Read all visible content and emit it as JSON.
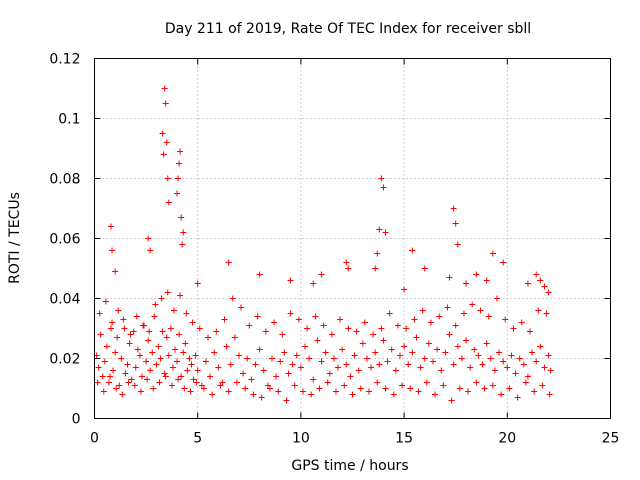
{
  "chart_data": {
    "type": "scatter",
    "title": "Day 211 of 2019, Rate Of TEC Index for receiver sbll",
    "xlabel": "GPS time / hours",
    "ylabel": "ROTI / TECUs",
    "xlim": [
      0,
      25
    ],
    "ylim": [
      0,
      0.12
    ],
    "xticks": [
      0,
      5,
      10,
      15,
      20,
      25
    ],
    "xtick_labels": [
      "0",
      "5",
      "10",
      "15",
      "20",
      "25"
    ],
    "yticks": [
      0,
      0.02,
      0.04,
      0.06,
      0.08,
      0.1,
      0.12
    ],
    "ytick_labels": [
      "0",
      "0.02",
      "0.04",
      "0.06",
      "0.08",
      "0.1",
      "0.12"
    ],
    "grid": true,
    "marker": "+",
    "series": [
      {
        "name": "ROTI",
        "color": "#ff0000",
        "x": [
          0.1,
          0.2,
          0.3,
          0.4,
          0.5,
          0.6,
          0.7,
          0.8,
          0.9,
          1.0,
          1.1,
          1.2,
          1.3,
          1.4,
          1.5,
          1.6,
          1.7,
          1.8,
          1.9,
          2.0,
          2.1,
          2.2,
          2.3,
          2.4,
          2.5,
          2.6,
          2.7,
          2.8,
          2.9,
          3.0,
          3.1,
          3.2,
          3.3,
          3.4,
          3.5,
          3.6,
          3.7,
          3.8,
          3.9,
          4.0,
          4.1,
          4.2,
          4.3,
          4.4,
          4.5,
          4.6,
          4.7,
          4.8,
          4.9,
          5.0,
          5.2,
          5.4,
          5.6,
          5.8,
          6.0,
          6.2,
          6.4,
          6.6,
          6.8,
          7.0,
          7.2,
          7.4,
          7.6,
          7.8,
          8.0,
          8.2,
          8.4,
          8.6,
          8.8,
          9.0,
          9.2,
          9.4,
          9.6,
          9.8,
          10.0,
          10.2,
          10.4,
          10.6,
          10.8,
          11.0,
          11.2,
          11.4,
          11.6,
          11.8,
          12.0,
          12.2,
          12.4,
          12.6,
          12.8,
          13.0,
          13.2,
          13.4,
          13.6,
          13.8,
          14.0,
          14.2,
          14.4,
          14.6,
          14.8,
          15.0,
          15.2,
          15.4,
          15.6,
          15.8,
          16.0,
          16.2,
          16.4,
          16.6,
          16.8,
          17.0,
          17.2,
          17.4,
          17.6,
          17.8,
          18.0,
          18.2,
          18.4,
          18.6,
          18.8,
          19.0,
          19.2,
          19.4,
          19.6,
          19.8,
          20.0,
          20.2,
          20.4,
          20.6,
          20.8,
          21.0,
          21.2,
          21.4,
          21.6,
          21.8,
          22.0,
          22.1,
          0.15,
          0.45,
          0.75,
          1.05,
          1.35,
          1.65,
          1.95,
          2.25,
          2.55,
          2.85,
          3.15,
          3.45,
          3.75,
          4.05,
          4.35,
          4.65,
          4.95,
          5.3,
          5.7,
          6.1,
          6.5,
          6.9,
          7.3,
          7.7,
          8.1,
          8.5,
          8.9,
          9.3,
          9.7,
          10.1,
          10.5,
          10.9,
          11.3,
          11.7,
          12.1,
          12.5,
          12.9,
          13.3,
          13.7,
          14.1,
          14.5,
          14.9,
          15.3,
          15.7,
          16.1,
          16.5,
          16.9,
          17.3,
          17.7,
          18.1,
          18.5,
          18.9,
          19.3,
          19.7,
          20.1,
          20.5,
          20.9,
          21.3,
          21.7,
          22.05,
          0.25,
          0.55,
          0.85,
          1.15,
          1.45,
          1.75,
          2.05,
          2.35,
          2.65,
          2.95,
          3.25,
          3.55,
          3.85,
          4.15,
          4.45,
          4.75,
          5.1,
          5.5,
          5.9,
          6.3,
          6.7,
          7.1,
          7.5,
          7.9,
          8.3,
          8.7,
          9.1,
          9.5,
          9.9,
          10.3,
          10.7,
          11.1,
          11.5,
          11.9,
          12.3,
          12.7,
          13.1,
          13.5,
          13.9,
          14.3,
          14.7,
          15.1,
          15.5,
          15.9,
          16.3,
          16.7,
          17.1,
          17.5,
          17.9,
          18.3,
          18.7,
          19.1,
          19.5,
          19.9,
          20.3,
          20.7,
          21.1,
          21.5,
          21.9,
          0.8,
          0.85,
          1.0,
          2.6,
          2.7,
          3.3,
          3.35,
          3.4,
          3.45,
          3.5,
          3.55,
          3.6,
          4.0,
          4.05,
          4.1,
          4.15,
          4.2,
          4.25,
          4.3,
          5.0,
          6.5,
          8.0,
          9.5,
          10.6,
          11.0,
          12.2,
          12.3,
          13.6,
          13.7,
          13.8,
          13.9,
          14.0,
          14.1,
          15.0,
          15.4,
          16.0,
          17.2,
          17.4,
          17.5,
          17.6,
          18.0,
          18.5,
          19.0,
          19.3,
          19.8,
          21.0,
          21.4,
          21.6,
          21.8,
          22.0
        ],
        "y": [
          0.021,
          0.017,
          0.028,
          0.014,
          0.019,
          0.024,
          0.012,
          0.03,
          0.016,
          0.022,
          0.027,
          0.011,
          0.02,
          0.033,
          0.015,
          0.018,
          0.025,
          0.013,
          0.029,
          0.017,
          0.023,
          0.021,
          0.014,
          0.031,
          0.019,
          0.026,
          0.016,
          0.022,
          0.034,
          0.018,
          0.024,
          0.02,
          0.029,
          0.015,
          0.027,
          0.021,
          0.03,
          0.017,
          0.023,
          0.019,
          0.028,
          0.014,
          0.022,
          0.025,
          0.016,
          0.02,
          0.018,
          0.013,
          0.021,
          0.016,
          0.011,
          0.019,
          0.014,
          0.022,
          0.017,
          0.012,
          0.024,
          0.018,
          0.027,
          0.021,
          0.015,
          0.02,
          0.013,
          0.018,
          0.023,
          0.016,
          0.011,
          0.02,
          0.014,
          0.019,
          0.022,
          0.015,
          0.018,
          0.021,
          0.017,
          0.024,
          0.02,
          0.013,
          0.026,
          0.019,
          0.022,
          0.015,
          0.02,
          0.017,
          0.023,
          0.018,
          0.014,
          0.021,
          0.016,
          0.025,
          0.02,
          0.017,
          0.022,
          0.018,
          0.026,
          0.019,
          0.023,
          0.016,
          0.021,
          0.024,
          0.018,
          0.022,
          0.027,
          0.017,
          0.02,
          0.025,
          0.019,
          0.023,
          0.016,
          0.022,
          0.028,
          0.018,
          0.024,
          0.02,
          0.026,
          0.017,
          0.023,
          0.021,
          0.018,
          0.025,
          0.02,
          0.016,
          0.022,
          0.019,
          0.017,
          0.021,
          0.015,
          0.02,
          0.018,
          0.014,
          0.022,
          0.019,
          0.024,
          0.017,
          0.021,
          0.016,
          0.012,
          0.009,
          0.014,
          0.01,
          0.008,
          0.012,
          0.011,
          0.009,
          0.013,
          0.01,
          0.012,
          0.014,
          0.011,
          0.013,
          0.01,
          0.009,
          0.012,
          0.01,
          0.008,
          0.011,
          0.009,
          0.012,
          0.01,
          0.008,
          0.007,
          0.01,
          0.009,
          0.006,
          0.011,
          0.009,
          0.008,
          0.01,
          0.012,
          0.009,
          0.011,
          0.008,
          0.01,
          0.009,
          0.012,
          0.01,
          0.008,
          0.011,
          0.01,
          0.009,
          0.012,
          0.008,
          0.011,
          0.006,
          0.01,
          0.009,
          0.012,
          0.01,
          0.011,
          0.008,
          0.01,
          0.007,
          0.012,
          0.009,
          0.011,
          0.008,
          0.035,
          0.039,
          0.032,
          0.036,
          0.03,
          0.028,
          0.034,
          0.031,
          0.029,
          0.038,
          0.04,
          0.042,
          0.036,
          0.041,
          0.035,
          0.032,
          0.03,
          0.027,
          0.029,
          0.033,
          0.04,
          0.037,
          0.031,
          0.034,
          0.029,
          0.032,
          0.028,
          0.035,
          0.033,
          0.03,
          0.034,
          0.031,
          0.028,
          0.033,
          0.03,
          0.029,
          0.032,
          0.028,
          0.03,
          0.035,
          0.031,
          0.03,
          0.033,
          0.036,
          0.032,
          0.034,
          0.037,
          0.031,
          0.035,
          0.038,
          0.036,
          0.034,
          0.04,
          0.033,
          0.03,
          0.032,
          0.029,
          0.036,
          0.035,
          0.064,
          0.056,
          0.049,
          0.06,
          0.056,
          0.095,
          0.088,
          0.11,
          0.105,
          0.092,
          0.08,
          0.072,
          0.075,
          0.08,
          0.085,
          0.089,
          0.067,
          0.058,
          0.062,
          0.045,
          0.052,
          0.048,
          0.046,
          0.045,
          0.048,
          0.052,
          0.05,
          0.05,
          0.055,
          0.063,
          0.08,
          0.077,
          0.062,
          0.043,
          0.056,
          0.05,
          0.047,
          0.07,
          0.065,
          0.058,
          0.045,
          0.048,
          0.046,
          0.055,
          0.052,
          0.045,
          0.048,
          0.046,
          0.044,
          0.042
        ]
      }
    ]
  }
}
